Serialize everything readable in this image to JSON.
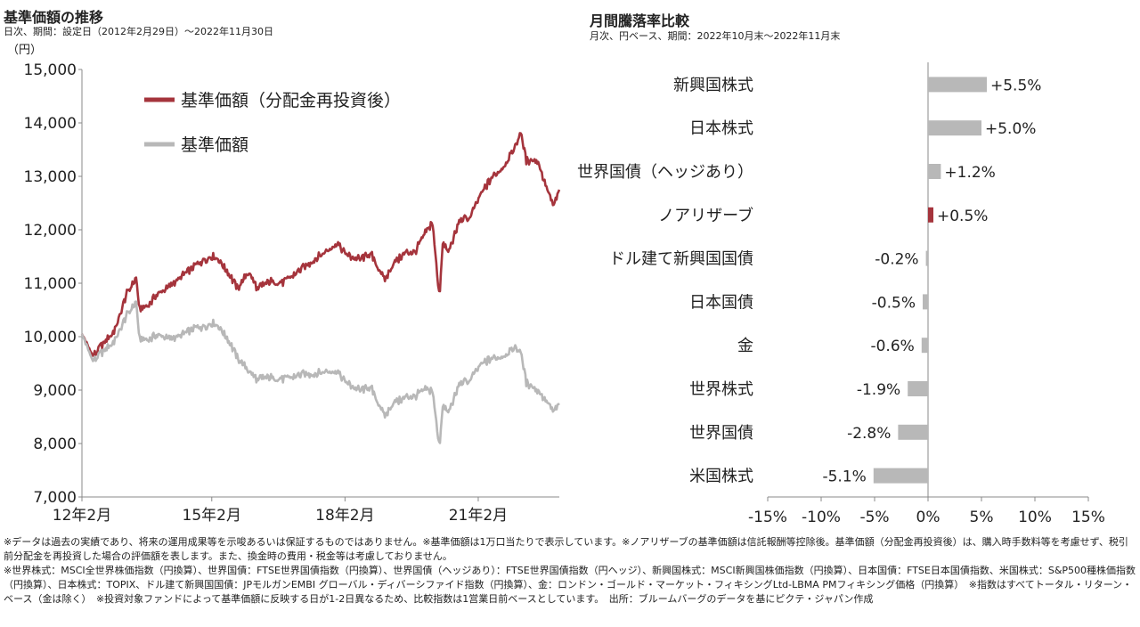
{
  "left": {
    "title": "基準価額の推移",
    "subtitle": "日次、期間：設定日（2012年2月29日）～2022年11月30日",
    "unit": "（円）"
  },
  "right": {
    "title": "月間騰落率比較",
    "subtitle": "月次、円ベース、期間：2022年10月末～2022年11月末"
  },
  "chart_data": [
    {
      "type": "line",
      "ylabel": "（円）",
      "ylim": [
        7000,
        15000
      ],
      "yticks": [
        "7,000",
        "8,000",
        "9,000",
        "10,000",
        "11,000",
        "12,000",
        "13,000",
        "14,000",
        "15,000"
      ],
      "xticks": [
        "12年2月",
        "15年2月",
        "18年2月",
        "21年2月"
      ],
      "xlim": [
        "2012-02-29",
        "2022-11-30"
      ],
      "legend_position": "top-left",
      "grid": false,
      "series": [
        {
          "name": "基準価額（分配金再投資後）",
          "color": "#a5343c",
          "x": [
            "2012-02-29",
            "2012-06-01",
            "2012-09-01",
            "2012-12-01",
            "2013-03-01",
            "2013-05-20",
            "2013-06-15",
            "2013-09-01",
            "2013-12-01",
            "2014-03-01",
            "2014-06-01",
            "2014-09-01",
            "2014-12-01",
            "2015-03-01",
            "2015-06-01",
            "2015-09-01",
            "2015-12-01",
            "2016-02-15",
            "2016-06-01",
            "2016-09-01",
            "2016-12-01",
            "2017-03-01",
            "2017-06-01",
            "2017-09-01",
            "2017-12-01",
            "2018-03-01",
            "2018-06-01",
            "2018-09-01",
            "2018-12-25",
            "2019-03-01",
            "2019-06-01",
            "2019-09-01",
            "2019-12-01",
            "2020-01-20",
            "2020-03-19",
            "2020-04-15",
            "2020-06-01",
            "2020-09-01",
            "2020-12-01",
            "2021-03-01",
            "2021-06-01",
            "2021-09-01",
            "2021-12-01",
            "2022-01-15",
            "2022-03-01",
            "2022-06-01",
            "2022-09-01",
            "2022-10-15",
            "2022-11-30"
          ],
          "values": [
            10050,
            9650,
            9900,
            10150,
            10800,
            11100,
            10500,
            10600,
            10850,
            10950,
            11150,
            11300,
            11450,
            11500,
            11250,
            10900,
            11200,
            10900,
            11050,
            11000,
            11150,
            11300,
            11450,
            11600,
            11750,
            11500,
            11450,
            11550,
            11050,
            11350,
            11550,
            11600,
            11950,
            12150,
            10750,
            11750,
            11600,
            12150,
            12250,
            12700,
            13000,
            13200,
            13550,
            13850,
            13300,
            13300,
            12700,
            12450,
            12750
          ]
        },
        {
          "name": "基準価額",
          "color": "#b8b8b8",
          "x": [
            "2012-02-29",
            "2012-06-01",
            "2012-09-01",
            "2012-12-01",
            "2013-03-01",
            "2013-05-20",
            "2013-06-15",
            "2013-09-01",
            "2013-12-01",
            "2014-03-01",
            "2014-06-01",
            "2014-09-01",
            "2014-12-01",
            "2015-03-01",
            "2015-06-01",
            "2015-09-01",
            "2015-12-01",
            "2016-02-15",
            "2016-06-01",
            "2016-09-01",
            "2016-12-01",
            "2017-03-01",
            "2017-06-01",
            "2017-09-01",
            "2017-12-01",
            "2018-03-01",
            "2018-06-01",
            "2018-09-01",
            "2018-12-25",
            "2019-03-01",
            "2019-06-01",
            "2019-09-01",
            "2019-12-01",
            "2020-01-20",
            "2020-03-19",
            "2020-04-15",
            "2020-06-01",
            "2020-09-01",
            "2020-12-01",
            "2021-03-01",
            "2021-06-01",
            "2021-09-01",
            "2021-12-01",
            "2022-01-15",
            "2022-03-01",
            "2022-06-01",
            "2022-09-01",
            "2022-10-15",
            "2022-11-30"
          ],
          "values": [
            10050,
            9550,
            9750,
            9950,
            10400,
            10650,
            9950,
            9950,
            10050,
            9950,
            10050,
            10150,
            10200,
            10250,
            10000,
            9600,
            9350,
            9200,
            9250,
            9200,
            9250,
            9300,
            9300,
            9350,
            9350,
            9100,
            9000,
            9050,
            8500,
            8750,
            8850,
            8900,
            9000,
            9000,
            7950,
            8700,
            8600,
            9100,
            9200,
            9500,
            9600,
            9650,
            9800,
            9750,
            9150,
            9000,
            8750,
            8600,
            8750
          ]
        }
      ]
    },
    {
      "type": "bar",
      "orientation": "horizontal",
      "xlim": [
        -15,
        15
      ],
      "xticks": [
        "-15%",
        "-10%",
        "-5%",
        "0%",
        "5%",
        "10%",
        "15%"
      ],
      "grid": false,
      "categories": [
        "新興国株式",
        "日本株式",
        "世界国債（ヘッジあり）",
        "ノアリザーブ",
        "ドル建て新興国国債",
        "日本国債",
        "金",
        "世界株式",
        "世界国債",
        "米国株式"
      ],
      "values": [
        5.5,
        5.0,
        1.2,
        0.5,
        -0.2,
        -0.5,
        -0.6,
        -1.9,
        -2.8,
        -5.1
      ],
      "labels": [
        "+5.5%",
        "+5.0%",
        "+1.2%",
        "+0.5%",
        "-0.2%",
        "-0.5%",
        "-0.6%",
        "-1.9%",
        "-2.8%",
        "-5.1%"
      ],
      "highlight_index": 3,
      "colors": {
        "default": "#b8b8b8",
        "highlight": "#a5343c"
      }
    }
  ],
  "notes": [
    "※データは過去の実績であり、将来の運用成果等を示唆あるいは保証するものではありません。※基準価額は1万口当たりで表示しています。※ノアリザーブの基準価額は信託報酬等控除後。基準価額（分配金再投資後）は、購入時手数料等を考慮せず、税引前分配金を再投資した場合の評価額を表します。また、換金時の費用・税金等は考慮しておりません。",
    "※世界株式：MSCI全世界株価指数（円換算）、世界国債：FTSE世界国債指数（円換算）、世界国債（ヘッジあり）：FTSE世界国債指数（円ヘッジ）、新興国株式：MSCI新興国株価指数（円換算）、日本国債：FTSE日本国債指数、米国株式：S&P500種株価指数（円換算）、日本株式：TOPIX、ドル建て新興国国債：JPモルガンEMBI グローバル・ディバーシファイド指数（円換算）、金：ロンドン・ゴールド・マーケット・フィキシングLtd-LBMA PMフィキシング価格（円換算）　※指数はすべてトータル・リターン・ベース（金は除く）　※投資対象ファンドによって基準価額に反映する日が1-2日異なるため、比較指数は1営業日前ベースとしています。　出所：ブルームバーグのデータを基にピクテ・ジャパン作成"
  ]
}
